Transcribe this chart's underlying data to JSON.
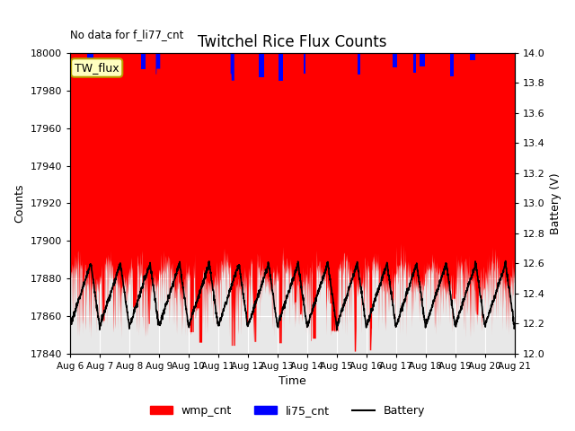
{
  "title": "Twitchel Rice Flux Counts",
  "subtitle": "No data for f_li77_cnt",
  "xlabel": "Time",
  "ylabel_left": "Counts",
  "ylabel_right": "Battery (V)",
  "ylim_left": [
    17840,
    18000
  ],
  "ylim_right": [
    12.0,
    14.0
  ],
  "x_tick_labels": [
    "Aug 6",
    "Aug 7",
    "Aug 8",
    "Aug 9",
    "Aug 10",
    "Aug 11",
    "Aug 12",
    "Aug 13",
    "Aug 14",
    "Aug 15",
    "Aug 16",
    "Aug 17",
    "Aug 18",
    "Aug 19",
    "Aug 20",
    "Aug 21"
  ],
  "yticks_left": [
    17840,
    17860,
    17880,
    17900,
    17920,
    17940,
    17960,
    17980,
    18000
  ],
  "yticks_right": [
    12.0,
    12.2,
    12.4,
    12.6,
    12.8,
    13.0,
    13.2,
    13.4,
    13.6,
    13.8,
    14.0
  ],
  "legend_box_label": "TW_flux",
  "legend_box_facecolor": "#ffffc0",
  "legend_box_edgecolor": "#b8a000",
  "wmp_color": "#ff0000",
  "li75_color": "#0000ff",
  "battery_color": "#000000",
  "bg_color": "#e8e8e8",
  "grid_color": "#ffffff"
}
